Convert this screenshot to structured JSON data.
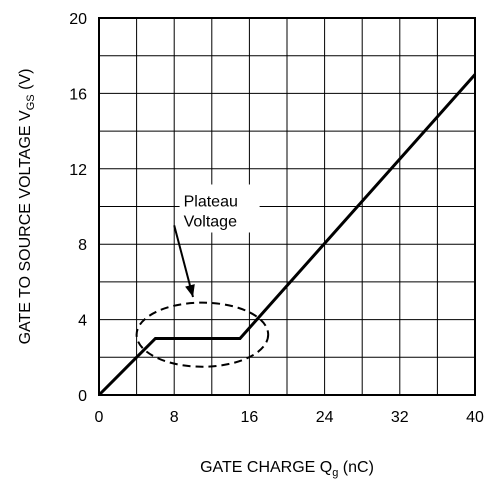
{
  "chart_data": {
    "type": "line",
    "xlabel": "GATE CHARGE Q",
    "xlabel_sub": "g",
    "xlabel_unit": " (nC)",
    "ylabel": "GATE TO SOURCE VOLTAGE V",
    "ylabel_sub": "GS",
    "ylabel_unit": " (V)",
    "xlim": [
      0,
      40
    ],
    "ylim": [
      0,
      20
    ],
    "x_ticks": [
      0,
      8,
      16,
      24,
      32,
      40
    ],
    "y_ticks": [
      0,
      4,
      8,
      12,
      16,
      20
    ],
    "grid": true,
    "grid_x_step": 4,
    "grid_y_step": 2,
    "series": [
      {
        "x": [
          0,
          6,
          15,
          40
        ],
        "y": [
          0,
          3,
          3,
          17
        ]
      }
    ],
    "annotation": {
      "lines": [
        "Plateau",
        "Voltage"
      ],
      "ellipse_center": [
        11,
        3.2
      ],
      "ellipse_radius": [
        7,
        1.7
      ],
      "arrow_from": [
        8,
        9
      ],
      "arrow_to": [
        10,
        5.2
      ],
      "text_anchor": [
        9,
        10
      ]
    },
    "line_color": "#000000",
    "grid_color": "#000000"
  }
}
